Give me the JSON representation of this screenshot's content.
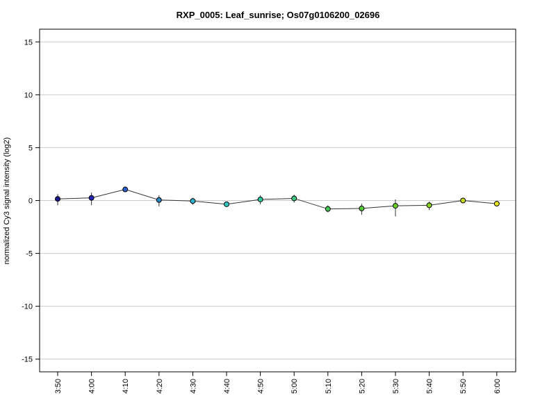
{
  "chart_data": {
    "type": "line",
    "title": "RXP_0005: Leaf_sunrise; Os07g0106200_02696",
    "ylabel": "normalized Cy3 signal intensity (log2)",
    "xlabel": "",
    "ylim": [
      -16.2,
      16.2
    ],
    "yticks": [
      15,
      10,
      5,
      0,
      -5,
      -10,
      -15
    ],
    "ytick_labels": [
      "15",
      "10",
      "5",
      "0",
      "-5",
      "-10",
      "-15"
    ],
    "grid": "horizontal",
    "categories": [
      "3:50",
      "4:00",
      "4:10",
      "4:20",
      "4:30",
      "4:40",
      "4:50",
      "5:00",
      "5:10",
      "5:20",
      "5:30",
      "5:40",
      "5:50",
      "6:00"
    ],
    "series": [
      {
        "values": [
          0.15,
          0.25,
          1.05,
          0.05,
          -0.05,
          -0.35,
          0.1,
          0.2,
          -0.8,
          -0.75,
          -0.5,
          -0.45,
          0.0,
          -0.3
        ],
        "error_low": [
          -0.45,
          -0.45,
          0.9,
          -0.55,
          -0.4,
          -0.45,
          -0.35,
          -0.2,
          -1.1,
          -1.35,
          -1.5,
          -0.9,
          -0.1,
          -0.45
        ],
        "error_high": [
          0.6,
          0.75,
          1.2,
          0.5,
          0.25,
          -0.2,
          0.5,
          0.55,
          -0.45,
          -0.3,
          0.1,
          -0.1,
          0.1,
          -0.15
        ],
        "point_colors": [
          "#1a1a8c",
          "#2626b8",
          "#2a5fc8",
          "#2b86c4",
          "#2fb4d0",
          "#2ec8c0",
          "#2fcca0",
          "#3ac880",
          "#44c855",
          "#55cc3a",
          "#6ad028",
          "#8ed41e",
          "#c8dc1e",
          "#e6e628"
        ],
        "line_color": "#333333"
      }
    ]
  }
}
